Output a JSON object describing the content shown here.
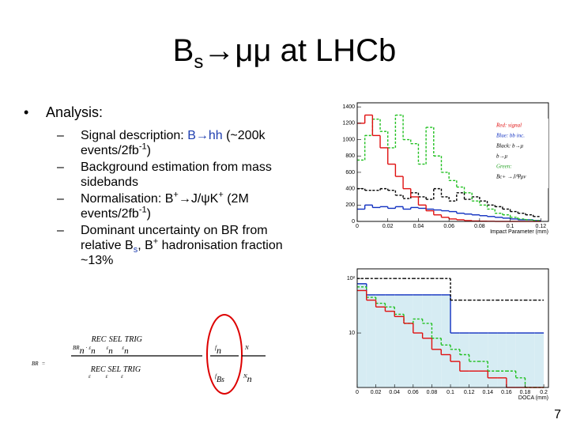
{
  "slide": {
    "title": [
      "B",
      "s",
      "→μμ at LHCb"
    ],
    "bullet": "Analysis:",
    "sub_bullets": [
      [
        "Signal description: ",
        "B→hh",
        " (~200k events/2fb",
        "-1",
        ")"
      ],
      [
        "Background estimation from mass sidebands"
      ],
      [
        "Normalisation: B",
        "+",
        "→J/ψK",
        "+",
        " (2M events/2fb",
        "-1",
        ")"
      ],
      [
        "Dominant uncertainty on BR from relative B",
        "s",
        ", B",
        "+",
        " hadronisation fraction ~13%"
      ]
    ],
    "page_number": "7"
  },
  "formula": {
    "lhs": "BR",
    "eq": "=",
    "numerator": [
      "BR",
      "n",
      "·",
      "ε",
      "n",
      "REC",
      "ε",
      "n",
      "SEL",
      "ε",
      "n",
      "TRIG"
    ],
    "denominator": [
      "ε",
      "REC",
      "ε",
      "SEL",
      "ε",
      "TRIG"
    ],
    "f_ratio": [
      "f",
      "n",
      "f",
      "Bs"
    ],
    "n_ratio": [
      "N",
      "N",
      "n"
    ]
  },
  "chart_data": [
    {
      "type": "histogram",
      "x_label": "Impact Parameter (mm)",
      "bins": [
        0,
        0.005,
        0.01,
        0.015,
        0.02,
        0.025,
        0.03,
        0.035,
        0.04,
        0.045,
        0.05,
        0.055,
        0.06,
        0.065,
        0.07,
        0.075,
        0.08,
        0.085,
        0.09,
        0.095,
        0.1,
        0.105,
        0.11,
        0.115,
        0.12
      ],
      "xlim": [
        0,
        0.125
      ],
      "xticks": [
        0,
        0.02,
        0.04,
        0.06,
        0.08,
        0.1,
        0.12
      ],
      "ylim": [
        0,
        1450
      ],
      "yticks": [
        0,
        200,
        400,
        600,
        800,
        1000,
        1200,
        1400
      ],
      "log": false,
      "series": [
        {
          "color": "#000000",
          "dash": true,
          "values": [
            400,
            380,
            380,
            400,
            380,
            320,
            280,
            350,
            300,
            270,
            400,
            300,
            250,
            350,
            270,
            300,
            250,
            200,
            180,
            150,
            120,
            100,
            80,
            60
          ]
        },
        {
          "color": "#1030c0",
          "dash": false,
          "values": [
            150,
            200,
            170,
            180,
            160,
            180,
            150,
            170,
            160,
            150,
            140,
            130,
            120,
            100,
            90,
            80,
            70,
            60,
            50,
            40,
            30,
            20,
            20,
            10
          ]
        },
        {
          "color": "#20c020",
          "dash": true,
          "values": [
            750,
            1050,
            1250,
            1100,
            900,
            1300,
            1000,
            950,
            700,
            1150,
            800,
            600,
            500,
            420,
            350,
            250,
            200,
            150,
            100,
            80,
            50,
            30,
            20,
            10
          ]
        },
        {
          "color": "#e01010",
          "dash": false,
          "values": [
            1200,
            1300,
            1050,
            900,
            700,
            550,
            400,
            300,
            200,
            130,
            80,
            50,
            30,
            20,
            10,
            5,
            3,
            2,
            0,
            0,
            0,
            0,
            0,
            0
          ]
        }
      ],
      "annotations": [
        {
          "text": "Red: signal",
          "color": "#e01010"
        },
        {
          "text": "Blue: bb inc.",
          "color": "#1030c0"
        },
        {
          "text": "Black: b→μ",
          "color": "#000000"
        },
        {
          "text": "b→μ",
          "color": "#000000"
        },
        {
          "text": "Green:",
          "color": "#20a020"
        },
        {
          "text": "Bc+ →J/Ψμν",
          "color": "#000000"
        }
      ]
    },
    {
      "type": "histogram",
      "x_label": "DOCA (mm)",
      "bins": [
        0,
        0.01,
        0.02,
        0.03,
        0.04,
        0.05,
        0.06,
        0.07,
        0.08,
        0.09,
        0.1,
        0.11,
        0.12,
        0.13,
        0.14,
        0.15,
        0.16,
        0.17,
        0.18,
        0.19,
        0.2
      ],
      "xlim": [
        0,
        0.205
      ],
      "xticks": [
        0,
        0.02,
        0.04,
        0.06,
        0.08,
        0.1,
        0.12,
        0.14,
        0.16,
        0.18,
        0.2
      ],
      "ylim": [
        1,
        150
      ],
      "yticks": [
        {
          "value": 100,
          "label": "10²"
        },
        {
          "value": 10,
          "label": "10"
        }
      ],
      "log": true,
      "series": [
        {
          "color": "#1030c0",
          "dash": false,
          "fill": "#d6ecf3",
          "values": [
            80,
            50,
            50,
            50,
            50,
            50,
            50,
            50,
            50,
            50,
            10,
            10,
            10,
            10,
            10,
            10,
            10,
            10,
            10,
            10
          ]
        },
        {
          "color": "#000000",
          "dash": true,
          "values": [
            100,
            100,
            100,
            100,
            100,
            100,
            100,
            100,
            100,
            100,
            40,
            40,
            40,
            40,
            40,
            40,
            40,
            40,
            40,
            40
          ]
        },
        {
          "color": "#20c020",
          "dash": true,
          "values": [
            70,
            45,
            35,
            30,
            22,
            15,
            18,
            15,
            8,
            6,
            5,
            4,
            3,
            3,
            2,
            2,
            2,
            1.5,
            1,
            1
          ]
        },
        {
          "color": "#e01010",
          "dash": false,
          "values": [
            60,
            40,
            30,
            25,
            20,
            15,
            10,
            8,
            5,
            4,
            3,
            2,
            2,
            2,
            1.5,
            1.5,
            1,
            1,
            1,
            1
          ]
        }
      ]
    }
  ]
}
